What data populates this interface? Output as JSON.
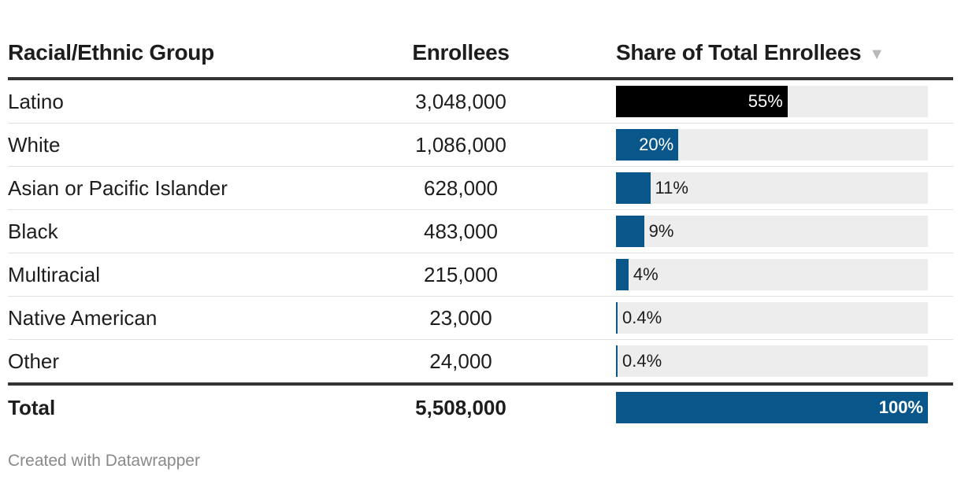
{
  "chart_data": {
    "type": "table",
    "columns": [
      "Racial/Ethnic Group",
      "Enrollees",
      "Share of Total Enrollees"
    ],
    "rows": [
      {
        "group": "Latino",
        "enrollees": "3,048,000",
        "share": 55,
        "share_label": "55%",
        "highlight": true
      },
      {
        "group": "White",
        "enrollees": "1,086,000",
        "share": 20,
        "share_label": "20%",
        "highlight": false
      },
      {
        "group": "Asian or Pacific Islander",
        "enrollees": "628,000",
        "share": 11,
        "share_label": "11%",
        "highlight": false
      },
      {
        "group": "Black",
        "enrollees": "483,000",
        "share": 9,
        "share_label": "9%",
        "highlight": false
      },
      {
        "group": "Multiracial",
        "enrollees": "215,000",
        "share": 4,
        "share_label": "4%",
        "highlight": false
      },
      {
        "group": "Native American",
        "enrollees": "23,000",
        "share": 0.4,
        "share_label": "0.4%",
        "highlight": false
      },
      {
        "group": "Other",
        "enrollees": "24,000",
        "share": 0.4,
        "share_label": "0.4%",
        "highlight": false
      }
    ],
    "total": {
      "group": "Total",
      "enrollees": "5,508,000",
      "share": 100,
      "share_label": "100%"
    },
    "share_range": [
      0,
      100
    ],
    "sorted_by": "Share of Total Enrollees",
    "sort_direction": "descending"
  },
  "colors": {
    "bar": "#09568a",
    "highlight_bar": "#000000",
    "track": "#ededed",
    "rule": "#333333"
  },
  "icons": {
    "sort": "sort-descending-icon"
  },
  "footer": {
    "credit": "Created with Datawrapper"
  }
}
